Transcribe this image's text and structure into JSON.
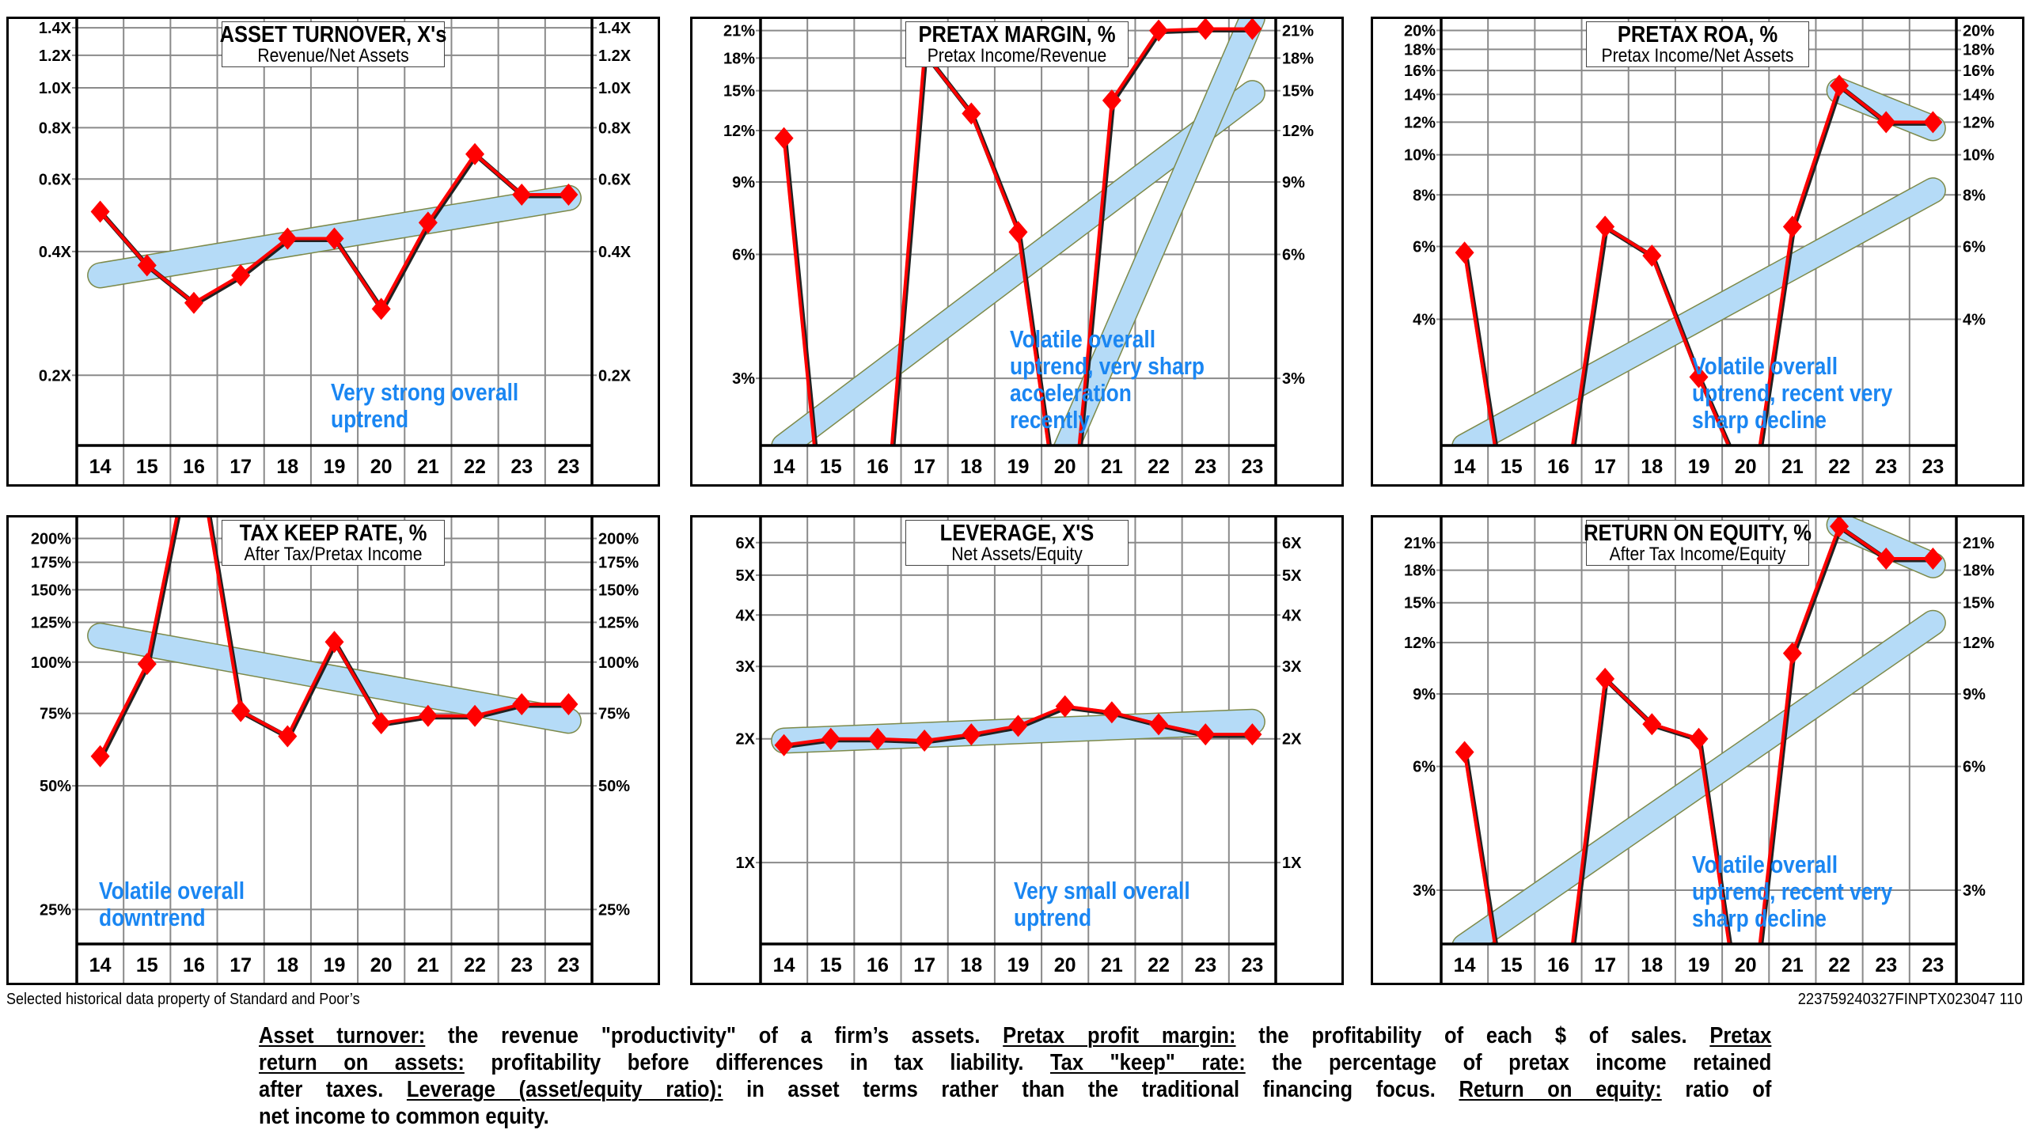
{
  "colors": {
    "line": "#ff0000",
    "marker": "#ff0000",
    "trend": "#b5dbf7",
    "trend_edge": "#7d8a4a",
    "annotation": "#1a86f2",
    "grid": "#8a8a8a"
  },
  "chart_data": [
    {
      "type": "line",
      "scale": "log",
      "title": "ASSET TURNOVER, X's",
      "subtitle": "Revenue/Net Assets",
      "categories": [
        "14",
        "15",
        "16",
        "17",
        "18",
        "19",
        "20",
        "21",
        "22",
        "23",
        "23"
      ],
      "values": [
        0.5,
        0.37,
        0.3,
        0.35,
        0.43,
        0.43,
        0.29,
        0.47,
        0.69,
        0.55,
        0.55
      ],
      "ylim": [
        0.135,
        1.49
      ],
      "yticks": [
        {
          "label": "1.4X",
          "v": 1.4
        },
        {
          "label": "1.2X",
          "v": 1.2
        },
        {
          "label": "1.0X",
          "v": 1.0
        },
        {
          "label": "0.8X",
          "v": 0.8
        },
        {
          "label": "0.6X",
          "v": 0.6
        },
        {
          "label": "0.4X",
          "v": 0.4
        },
        {
          "label": "0.2X",
          "v": 0.2
        }
      ],
      "trends": [
        {
          "from": [
            0,
            0.35
          ],
          "to": [
            10,
            0.54
          ]
        }
      ],
      "annotation": [
        "Very strong overall",
        "uptrend"
      ],
      "grid": true
    },
    {
      "type": "line",
      "scale": "log",
      "title": "PRETAX MARGIN, %",
      "subtitle": "Pretax Income/Revenue",
      "categories": [
        "14",
        "15",
        "16",
        "17",
        "18",
        "19",
        "20",
        "21",
        "22",
        "23",
        "23"
      ],
      "values": [
        11.5,
        "below",
        "below",
        18.5,
        13.2,
        6.8,
        "below",
        14.2,
        21.0,
        21.2,
        21.2
      ],
      "ylim": [
        2.06,
        22.7
      ],
      "yticks": [
        {
          "label": "21%",
          "v": 21
        },
        {
          "label": "18%",
          "v": 18
        },
        {
          "label": "15%",
          "v": 15
        },
        {
          "label": "12%",
          "v": 12
        },
        {
          "label": "9%",
          "v": 9
        },
        {
          "label": "6%",
          "v": 6
        },
        {
          "label": "3%",
          "v": 3
        }
      ],
      "trends": [
        {
          "from": [
            0,
            2.05
          ],
          "to": [
            10,
            14.8
          ]
        },
        {
          "from": [
            6,
            2.0
          ],
          "to": [
            10,
            22.5
          ]
        }
      ],
      "annotation": [
        "Volatile overall",
        "uptrend, very sharp",
        "acceleration",
        "recently"
      ],
      "grid": true
    },
    {
      "type": "line",
      "scale": "log",
      "title": "PRETAX ROA, %",
      "subtitle": "Pretax Income/Net Assets",
      "categories": [
        "14",
        "15",
        "16",
        "17",
        "18",
        "19",
        "20",
        "21",
        "22",
        "23",
        "23"
      ],
      "values": [
        5.8,
        "below",
        "below",
        6.7,
        5.7,
        2.9,
        "below",
        6.7,
        14.7,
        12.0,
        12.0
      ],
      "ylim": [
        1.98,
        21.6
      ],
      "yticks": [
        {
          "label": "20%",
          "v": 20
        },
        {
          "label": "18%",
          "v": 18
        },
        {
          "label": "16%",
          "v": 16
        },
        {
          "label": "14%",
          "v": 14
        },
        {
          "label": "12%",
          "v": 12
        },
        {
          "label": "10%",
          "v": 10
        },
        {
          "label": "8%",
          "v": 8
        },
        {
          "label": "6%",
          "v": 6
        },
        {
          "label": "4%",
          "v": 4
        }
      ],
      "trends": [
        {
          "from": [
            0,
            1.97
          ],
          "to": [
            10,
            8.2
          ]
        },
        {
          "from": [
            8,
            14.3
          ],
          "to": [
            10,
            11.6
          ]
        }
      ],
      "annotation": [
        "Volatile overall",
        "uptrend, recent very",
        "sharp decline"
      ],
      "grid": true
    },
    {
      "type": "line",
      "scale": "log",
      "title": "TAX KEEP RATE, %",
      "subtitle": "After Tax/Pretax Income",
      "categories": [
        "14",
        "15",
        "16",
        "17",
        "18",
        "19",
        "20",
        "21",
        "22",
        "23",
        "23"
      ],
      "values": [
        59,
        99,
        "above",
        76,
        66,
        112,
        71,
        74,
        74,
        79,
        79
      ],
      "ylim": [
        20.6,
        228
      ],
      "yticks": [
        {
          "label": "200%",
          "v": 200
        },
        {
          "label": "175%",
          "v": 175
        },
        {
          "label": "150%",
          "v": 150
        },
        {
          "label": "125%",
          "v": 125
        },
        {
          "label": "100%",
          "v": 100
        },
        {
          "label": "75%",
          "v": 75
        },
        {
          "label": "50%",
          "v": 50
        },
        {
          "label": "25%",
          "v": 25
        }
      ],
      "trends": [
        {
          "from": [
            0,
            116
          ],
          "to": [
            10,
            72
          ]
        }
      ],
      "annotation": [
        "Volatile overall",
        "downtrend"
      ],
      "grid": true
    },
    {
      "type": "line",
      "scale": "log",
      "title": "LEVERAGE, X'S",
      "subtitle": "Net Assets/Equity",
      "categories": [
        "14",
        "15",
        "16",
        "17",
        "18",
        "19",
        "20",
        "21",
        "22",
        "23",
        "23"
      ],
      "values": [
        1.93,
        2.0,
        2.0,
        1.98,
        2.05,
        2.15,
        2.4,
        2.32,
        2.17,
        2.05,
        2.05
      ],
      "ylim": [
        0.634,
        7.0
      ],
      "yticks": [
        {
          "label": "6X",
          "v": 6
        },
        {
          "label": "5X",
          "v": 5
        },
        {
          "label": "4X",
          "v": 4
        },
        {
          "label": "3X",
          "v": 3
        },
        {
          "label": "2X",
          "v": 2
        },
        {
          "label": "1X",
          "v": 1
        }
      ],
      "trends": [
        {
          "from": [
            0,
            1.98
          ],
          "to": [
            10,
            2.2
          ]
        }
      ],
      "annotation": [
        "Very small overall",
        "uptrend"
      ],
      "grid": true
    },
    {
      "type": "line",
      "scale": "log",
      "title": "RETURN ON EQUITY, %",
      "subtitle": "After Tax Income/Equity",
      "categories": [
        "14",
        "15",
        "16",
        "17",
        "18",
        "19",
        "20",
        "21",
        "22",
        "23",
        "23"
      ],
      "values": [
        6.5,
        "below",
        "below",
        9.8,
        7.6,
        7.0,
        "below",
        11.3,
        23.0,
        19.2,
        19.2
      ],
      "ylim": [
        2.22,
        24.5
      ],
      "yticks": [
        {
          "label": "21%",
          "v": 21
        },
        {
          "label": "18%",
          "v": 18
        },
        {
          "label": "15%",
          "v": 15
        },
        {
          "label": "12%",
          "v": 12
        },
        {
          "label": "9%",
          "v": 9
        },
        {
          "label": "6%",
          "v": 6
        },
        {
          "label": "3%",
          "v": 3
        }
      ],
      "trends": [
        {
          "from": [
            0,
            2.19
          ],
          "to": [
            10,
            13.4
          ]
        },
        {
          "from": [
            8,
            23.2
          ],
          "to": [
            10,
            18.5
          ]
        }
      ],
      "annotation": [
        "Volatile overall",
        "uptrend, recent very",
        "sharp decline"
      ],
      "grid": true
    }
  ],
  "footer": {
    "source": "Selected historical data property of Standard and Poor’s",
    "code": "223759240327FINPTX023047 110"
  },
  "glossary": [
    [
      {
        "t": "Asset turnover:",
        "u": true
      },
      {
        "t": " the revenue \"productivity\" of a firm’s assets. ",
        "u": false
      },
      {
        "t": "Pretax profit margin:",
        "u": true
      },
      {
        "t": " the profitability of each $ of sales. ",
        "u": false
      },
      {
        "t": "Pretax",
        "u": true
      }
    ],
    [
      {
        "t": "return on assets:",
        "u": true
      },
      {
        "t": " profitability before differences in tax liability. ",
        "u": false
      },
      {
        "t": "Tax \"keep\" rate:",
        "u": true
      },
      {
        "t": " the percentage of pretax income retained",
        "u": false
      }
    ],
    [
      {
        "t": "after taxes. ",
        "u": false
      },
      {
        "t": "Leverage (asset/equity ratio):",
        "u": true
      },
      {
        "t": " in asset terms rather than the traditional financing focus. ",
        "u": false
      },
      {
        "t": "Return on equity:",
        "u": true
      },
      {
        "t": " ratio of",
        "u": false
      }
    ],
    [
      {
        "t": "net income to common equity.",
        "u": false
      }
    ]
  ]
}
